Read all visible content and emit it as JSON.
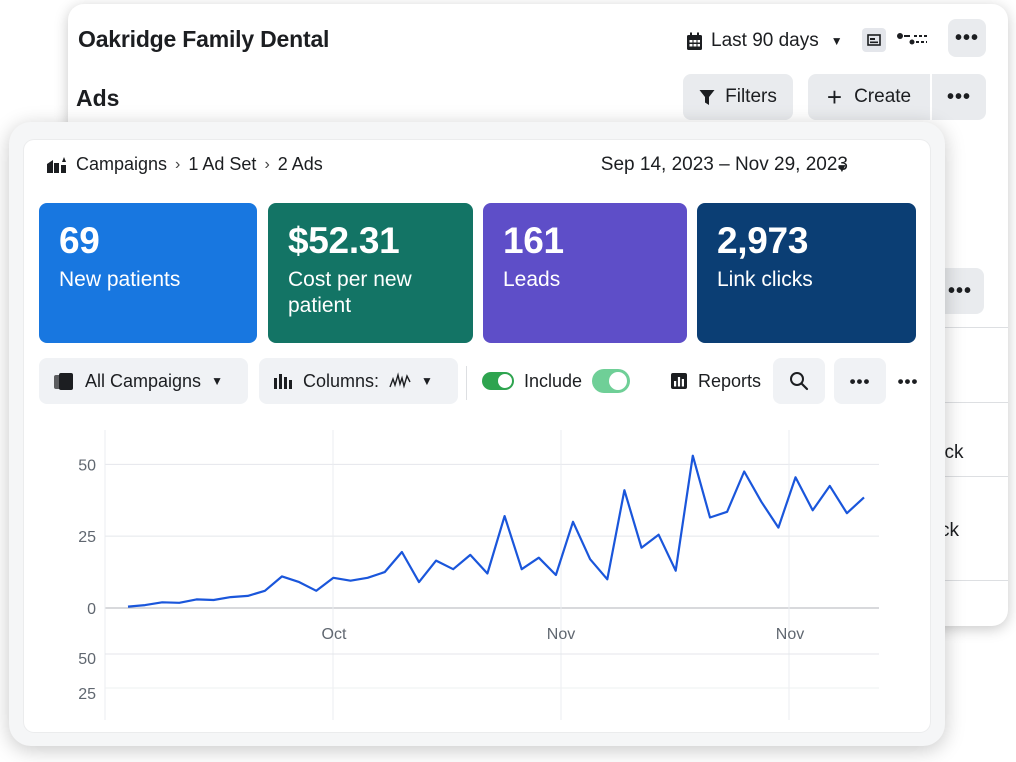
{
  "account": {
    "name": "Oakridge Family Dental",
    "range_label": "Last 90 days",
    "section_title": "Ads",
    "filters_label": "Filters",
    "create_label": "Create",
    "more_label": "•••",
    "partial_texts": [
      "lick",
      "ck"
    ]
  },
  "breadcrumb": {
    "items": [
      "Campaigns",
      "1 Ad Set",
      "2 Ads"
    ],
    "separator": "›"
  },
  "date_range": "Sep 14, 2023 – Nov 29, 2023",
  "kpis": [
    {
      "value": "69",
      "label": "New patients",
      "color": "#1877e0"
    },
    {
      "value": "$52.31",
      "label": "Cost per new patient",
      "color": "#137465"
    },
    {
      "value": "161",
      "label": "Leads",
      "color": "#5e4ec8"
    },
    {
      "value": "2,973",
      "label": "Link clicks",
      "color": "#0b3e74"
    }
  ],
  "toolbar": {
    "campaigns_label": "All Campaigns",
    "columns_label": "Columns:",
    "include_label": "Include",
    "reports_label": "Reports",
    "more_label": "•••"
  },
  "colors": {
    "line": "#1a56db",
    "toggle_on": "#2ea44f",
    "toggle_mint": "#6fcf97"
  },
  "chart_data": {
    "type": "line",
    "title": "",
    "xlabel": "",
    "ylabel": "",
    "ylim": [
      0,
      55
    ],
    "y_ticks": [
      0,
      25,
      50
    ],
    "x_tick_labels": [
      "Oct",
      "Nov",
      "Nov"
    ],
    "lower_y_ticks": [
      50,
      25
    ],
    "grid": true,
    "series": [
      {
        "values": [
          0.5,
          1,
          2,
          1.8,
          3,
          2.8,
          3.8,
          4.2,
          6,
          11,
          9,
          6,
          10.5,
          9.5,
          10.5,
          12.5,
          19.5,
          9,
          16.5,
          13.5,
          18.5,
          12,
          32,
          13.5,
          17.5,
          11.5,
          30,
          17,
          10,
          41,
          21,
          25.5,
          13,
          53,
          31.5,
          33.5,
          47.5,
          37,
          28,
          45.5,
          34,
          42.5,
          33,
          38.5
        ]
      }
    ]
  }
}
